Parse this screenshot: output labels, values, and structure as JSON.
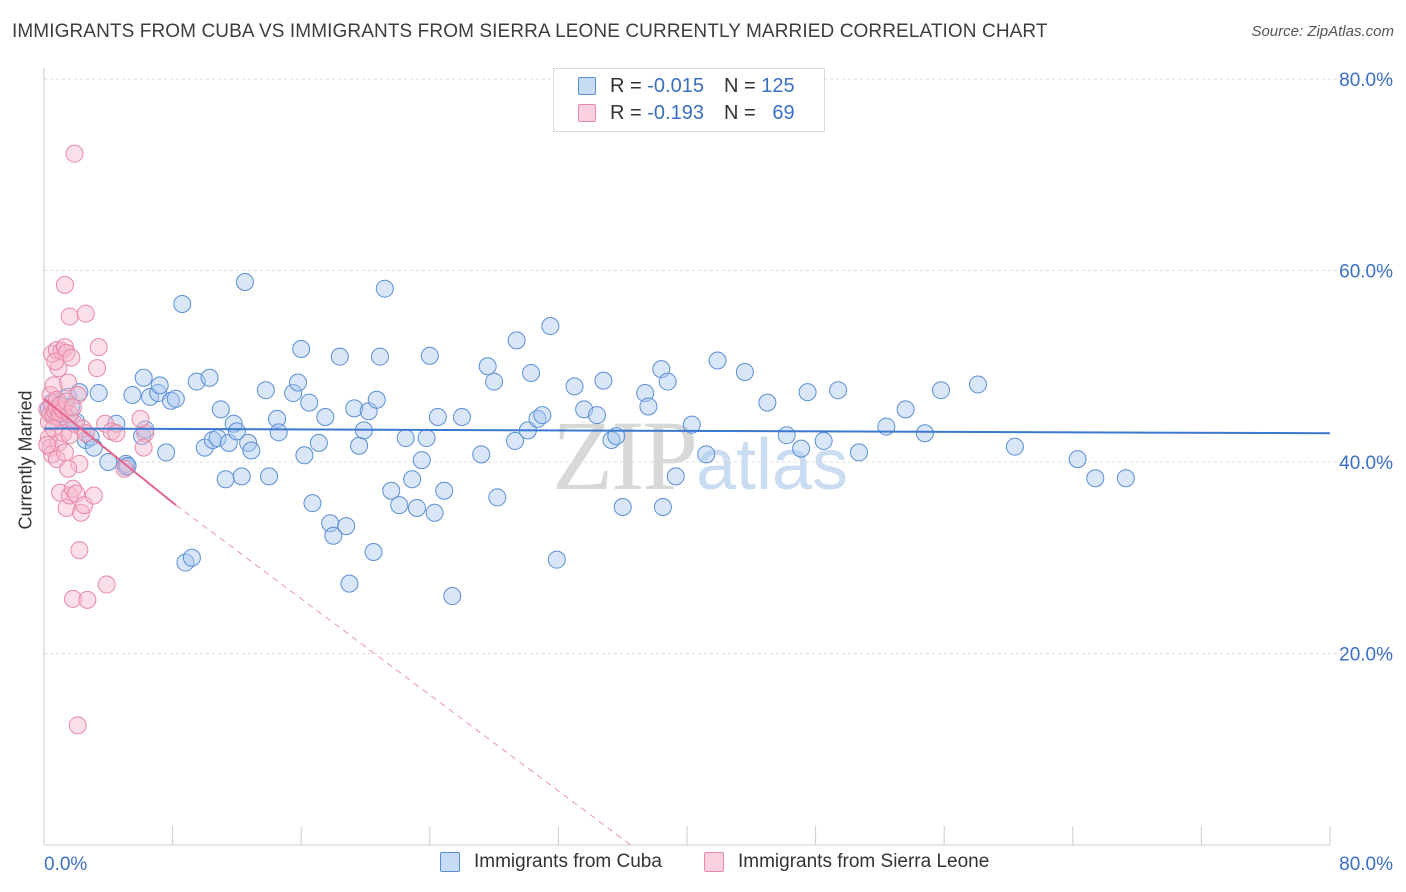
{
  "title": "IMMIGRANTS FROM CUBA VS IMMIGRANTS FROM SIERRA LEONE CURRENTLY MARRIED CORRELATION CHART",
  "source": "Source: ZipAtlas.com",
  "watermark": {
    "part1": "ZIP",
    "part2": "atlas"
  },
  "legend": {
    "rows": [
      {
        "r_label": "R =",
        "r_value": "-0.015",
        "n_label": "N =",
        "n_value": "125",
        "color": "#a9c8ef"
      },
      {
        "r_label": "R =",
        "r_value": "-0.193",
        "n_label": "N =",
        "n_value": "69",
        "color": "#f6b8cc"
      }
    ]
  },
  "colors": {
    "cuba_fill": "#a9c8ef",
    "cuba_stroke": "#5b8fd6",
    "cuba_line": "#3b78d0",
    "sl_fill": "#f6b8cc",
    "sl_stroke": "#e889a8",
    "sl_line": "#e3668f",
    "axis_label": "#3a6fc4",
    "grid": "#dddddd"
  },
  "chart_data": {
    "type": "scatter",
    "title": "IMMIGRANTS FROM CUBA VS IMMIGRANTS FROM SIERRA LEONE CURRENTLY MARRIED CORRELATION CHART",
    "xlabel": "",
    "ylabel": "Currently Married",
    "xlim": [
      0,
      80
    ],
    "ylim": [
      0,
      80
    ],
    "x_tick_labels": [
      "0.0%",
      "80.0%"
    ],
    "y_ticks": [
      20,
      40,
      60,
      80
    ],
    "y_tick_labels": [
      "20.0%",
      "40.0%",
      "60.0%",
      "80.0%"
    ],
    "grid": true,
    "legend_position": "top-center",
    "series": [
      {
        "name": "Immigrants from Cuba",
        "R": -0.015,
        "N": 125,
        "trend": {
          "x": [
            0,
            80
          ],
          "y": [
            43.5,
            43.0
          ]
        },
        "points": [
          [
            0.3,
            45.5
          ],
          [
            0.5,
            46.2
          ],
          [
            0.6,
            45.0
          ],
          [
            0.8,
            44.8
          ],
          [
            1.0,
            46.0
          ],
          [
            1.2,
            45.2
          ],
          [
            1.4,
            44.5
          ],
          [
            1.5,
            46.8
          ],
          [
            1.7,
            45.8
          ],
          [
            2.0,
            44.2
          ],
          [
            2.2,
            47.3
          ],
          [
            3.4,
            47.2
          ],
          [
            2.6,
            42.3
          ],
          [
            2.9,
            42.6
          ],
          [
            3.1,
            41.5
          ],
          [
            4.0,
            40.0
          ],
          [
            4.5,
            44.0
          ],
          [
            5.1,
            39.5
          ],
          [
            5.1,
            39.8
          ],
          [
            5.2,
            39.6
          ],
          [
            5.5,
            47.0
          ],
          [
            6.1,
            42.7
          ],
          [
            6.2,
            48.8
          ],
          [
            6.3,
            43.4
          ],
          [
            6.6,
            46.8
          ],
          [
            7.1,
            47.2
          ],
          [
            7.2,
            48.0
          ],
          [
            7.6,
            41.0
          ],
          [
            7.9,
            46.4
          ],
          [
            8.2,
            46.6
          ],
          [
            8.6,
            56.5
          ],
          [
            8.8,
            29.5
          ],
          [
            9.2,
            30.0
          ],
          [
            9.5,
            48.4
          ],
          [
            10.0,
            41.5
          ],
          [
            10.3,
            48.8
          ],
          [
            10.5,
            42.3
          ],
          [
            10.8,
            42.5
          ],
          [
            11.0,
            45.5
          ],
          [
            11.3,
            38.2
          ],
          [
            11.5,
            42.0
          ],
          [
            11.8,
            44.0
          ],
          [
            12.0,
            43.2
          ],
          [
            12.3,
            38.5
          ],
          [
            12.5,
            58.8
          ],
          [
            12.7,
            42.0
          ],
          [
            12.9,
            41.2
          ],
          [
            13.8,
            47.5
          ],
          [
            14.0,
            38.5
          ],
          [
            14.5,
            44.5
          ],
          [
            14.6,
            43.1
          ],
          [
            15.5,
            47.2
          ],
          [
            15.8,
            48.3
          ],
          [
            16.0,
            51.8
          ],
          [
            16.2,
            40.7
          ],
          [
            16.5,
            46.2
          ],
          [
            16.7,
            35.7
          ],
          [
            17.1,
            42.0
          ],
          [
            17.5,
            44.7
          ],
          [
            17.8,
            33.6
          ],
          [
            18.0,
            32.3
          ],
          [
            18.4,
            51.0
          ],
          [
            18.8,
            33.3
          ],
          [
            19.0,
            27.3
          ],
          [
            19.3,
            45.6
          ],
          [
            19.6,
            41.7
          ],
          [
            19.9,
            43.3
          ],
          [
            20.2,
            45.3
          ],
          [
            20.5,
            30.6
          ],
          [
            20.7,
            46.5
          ],
          [
            20.9,
            51.0
          ],
          [
            21.2,
            58.1
          ],
          [
            21.6,
            37.0
          ],
          [
            22.1,
            35.5
          ],
          [
            22.5,
            42.5
          ],
          [
            22.9,
            38.2
          ],
          [
            23.2,
            35.2
          ],
          [
            23.5,
            40.2
          ],
          [
            23.8,
            42.5
          ],
          [
            24.0,
            51.1
          ],
          [
            24.3,
            34.7
          ],
          [
            24.5,
            44.7
          ],
          [
            24.9,
            37.0
          ],
          [
            25.4,
            26.0
          ],
          [
            26.0,
            44.7
          ],
          [
            27.2,
            40.8
          ],
          [
            27.6,
            50.0
          ],
          [
            28.0,
            48.4
          ],
          [
            28.2,
            36.3
          ],
          [
            29.3,
            42.2
          ],
          [
            29.4,
            52.7
          ],
          [
            30.1,
            43.3
          ],
          [
            30.3,
            49.3
          ],
          [
            30.7,
            44.5
          ],
          [
            31.0,
            44.9
          ],
          [
            31.5,
            54.2
          ],
          [
            31.9,
            29.8
          ],
          [
            33.0,
            47.9
          ],
          [
            33.6,
            45.5
          ],
          [
            34.4,
            44.9
          ],
          [
            34.8,
            48.5
          ],
          [
            35.3,
            42.3
          ],
          [
            35.6,
            42.7
          ],
          [
            36.0,
            35.3
          ],
          [
            37.4,
            47.2
          ],
          [
            37.6,
            45.8
          ],
          [
            38.4,
            49.7
          ],
          [
            38.5,
            35.3
          ],
          [
            38.8,
            48.4
          ],
          [
            39.3,
            38.5
          ],
          [
            40.3,
            43.9
          ],
          [
            41.2,
            40.8
          ],
          [
            41.9,
            50.6
          ],
          [
            43.6,
            49.4
          ],
          [
            45.0,
            46.2
          ],
          [
            46.2,
            42.8
          ],
          [
            47.1,
            41.4
          ],
          [
            47.5,
            47.3
          ],
          [
            48.5,
            42.2
          ],
          [
            49.4,
            47.5
          ],
          [
            50.7,
            41.0
          ],
          [
            52.4,
            43.7
          ],
          [
            53.6,
            45.5
          ],
          [
            54.8,
            43.0
          ],
          [
            55.8,
            47.5
          ],
          [
            58.1,
            48.1
          ],
          [
            60.4,
            41.6
          ],
          [
            64.3,
            40.3
          ],
          [
            65.4,
            38.3
          ],
          [
            67.3,
            38.3
          ]
        ]
      },
      {
        "name": "Immigrants from Sierra Leone",
        "R": -0.193,
        "N": 69,
        "trend": {
          "x": [
            0,
            8.2
          ],
          "y": [
            46.6,
            35.5
          ]
        },
        "trend_extended": {
          "x": [
            8.2,
            36.5
          ],
          "y": [
            35.5,
            0
          ]
        },
        "points": [
          [
            0.2,
            45.5
          ],
          [
            0.3,
            44.2
          ],
          [
            0.4,
            45.0
          ],
          [
            0.5,
            46.0
          ],
          [
            0.6,
            44.8
          ],
          [
            0.7,
            45.3
          ],
          [
            0.8,
            45.8
          ],
          [
            0.9,
            44.6
          ],
          [
            1.0,
            45.1
          ],
          [
            1.1,
            45.6
          ],
          [
            0.3,
            42.5
          ],
          [
            0.4,
            41.5
          ],
          [
            0.6,
            43.5
          ],
          [
            0.9,
            42.0
          ],
          [
            1.2,
            43.0
          ],
          [
            0.5,
            40.8
          ],
          [
            0.8,
            40.3
          ],
          [
            1.3,
            41.0
          ],
          [
            1.6,
            42.8
          ],
          [
            0.2,
            41.8
          ],
          [
            0.4,
            47.0
          ],
          [
            0.6,
            48.0
          ],
          [
            0.9,
            49.8
          ],
          [
            0.5,
            51.3
          ],
          [
            0.8,
            51.7
          ],
          [
            1.1,
            51.6
          ],
          [
            1.3,
            52.0
          ],
          [
            1.4,
            51.4
          ],
          [
            1.7,
            50.9
          ],
          [
            0.7,
            50.5
          ],
          [
            1.3,
            58.5
          ],
          [
            1.6,
            55.2
          ],
          [
            2.6,
            55.5
          ],
          [
            3.4,
            52.0
          ],
          [
            3.3,
            49.8
          ],
          [
            1.5,
            48.3
          ],
          [
            2.1,
            47.0
          ],
          [
            1.9,
            44.0
          ],
          [
            2.4,
            43.5
          ],
          [
            2.6,
            43.0
          ],
          [
            1.0,
            36.8
          ],
          [
            1.4,
            35.2
          ],
          [
            1.6,
            36.5
          ],
          [
            1.8,
            37.2
          ],
          [
            2.0,
            36.7
          ],
          [
            2.3,
            34.7
          ],
          [
            2.5,
            35.5
          ],
          [
            3.1,
            36.5
          ],
          [
            2.2,
            30.8
          ],
          [
            3.9,
            27.2
          ],
          [
            1.8,
            25.7
          ],
          [
            2.7,
            25.6
          ],
          [
            2.1,
            12.5
          ],
          [
            1.9,
            72.2
          ],
          [
            2.2,
            39.8
          ],
          [
            1.5,
            39.3
          ],
          [
            5.0,
            39.3
          ],
          [
            6.3,
            43.0
          ],
          [
            6.2,
            41.5
          ],
          [
            6.0,
            44.5
          ],
          [
            3.8,
            44.0
          ],
          [
            4.2,
            43.2
          ],
          [
            4.5,
            43.0
          ],
          [
            0.8,
            46.5
          ],
          [
            1.0,
            45.9
          ],
          [
            1.2,
            45.4
          ],
          [
            1.4,
            46.3
          ],
          [
            1.6,
            45.0
          ],
          [
            1.8,
            45.7
          ]
        ]
      }
    ]
  },
  "bottom_legend": {
    "items": [
      {
        "label": "Immigrants from Cuba"
      },
      {
        "label": "Immigrants from Sierra Leone"
      }
    ]
  }
}
